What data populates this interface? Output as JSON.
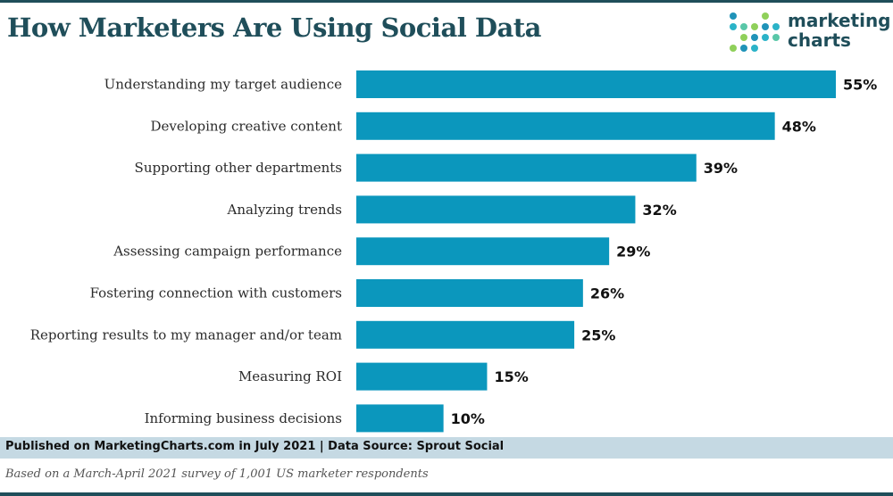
{
  "header": {
    "title": "How Marketers Are Using Social Data",
    "logo_line1": "marketing",
    "logo_line2": "charts",
    "logo_dot_colors": [
      "#1f93b8",
      "#2bb3c8",
      "#59c7a8",
      "#8fd05a",
      "#1f4e5a"
    ]
  },
  "colors": {
    "bar": "#0b97bd",
    "title": "#1f4e5a",
    "footer_band": "#c5d9e3"
  },
  "chart_data": {
    "type": "bar",
    "orientation": "horizontal",
    "title": "How Marketers Are Using Social Data",
    "categories": [
      "Understanding my target audience",
      "Developing creative content",
      "Supporting other departments",
      "Analyzing trends",
      "Assessing campaign performance",
      "Fostering connection with customers",
      "Reporting results to my manager and/or team",
      "Measuring ROI",
      "Informing business decisions"
    ],
    "values": [
      55,
      48,
      39,
      32,
      29,
      26,
      25,
      15,
      10
    ],
    "value_labels": [
      "55%",
      "48%",
      "39%",
      "32%",
      "29%",
      "26%",
      "25%",
      "15%",
      "10%"
    ],
    "unit": "%",
    "xlim": [
      0,
      60
    ],
    "grid": false,
    "xlabel": "",
    "ylabel": ""
  },
  "footer": {
    "source": "Published on MarketingCharts.com in July 2021 | Data Source: Sprout Social",
    "note": "Based on a March-April 2021 survey of 1,001 US marketer respondents"
  }
}
